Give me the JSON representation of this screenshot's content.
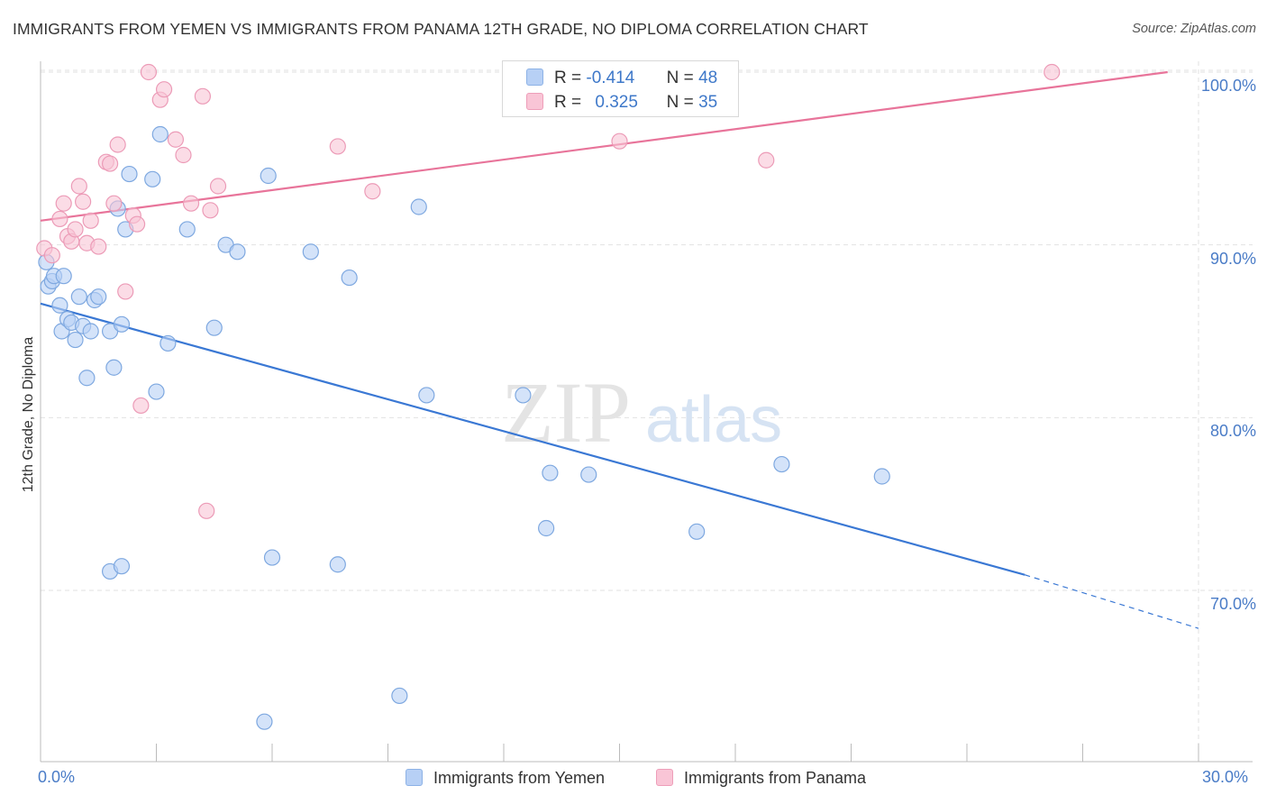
{
  "title": "IMMIGRANTS FROM YEMEN VS IMMIGRANTS FROM PANAMA 12TH GRADE, NO DIPLOMA CORRELATION CHART",
  "source": "Source: ZipAtlas.com",
  "watermark": {
    "zip": "ZIP",
    "atlas": "atlas"
  },
  "colors": {
    "blue": "#3a78d4",
    "pink": "#e8749a",
    "blue_fill": "#b7d0f5",
    "pink_fill": "#f9c5d6"
  },
  "legend": {
    "series": [
      {
        "r_label": "R =",
        "r_value": "-0.414",
        "n_label": "N =",
        "n_value": "48"
      },
      {
        "r_label": "R =",
        "r_value": "0.325",
        "n_label": "N =",
        "n_value": "35"
      }
    ]
  },
  "chart_data": {
    "type": "scatter",
    "title": "IMMIGRANTS FROM YEMEN VS IMMIGRANTS FROM PANAMA 12TH GRADE, NO DIPLOMA CORRELATION CHART",
    "xlabel": "",
    "ylabel": "12th Grade, No Diploma",
    "xlim": [
      0,
      30
    ],
    "ylim": [
      60,
      101
    ],
    "x_tick_labels": [
      "0.0%",
      "30.0%"
    ],
    "y_ticks": [
      70,
      80,
      90,
      100
    ],
    "y_tick_labels": [
      "70.0%",
      "80.0%",
      "90.0%",
      "100.0%"
    ],
    "grid": true,
    "series": [
      {
        "name": "Immigrants from Yemen",
        "color": "#3a78d4",
        "trend": {
          "x0": 0,
          "y0": 86.6,
          "x1": 25.5,
          "y1": 70.9,
          "dash_to_x": 30,
          "dash_to_y": 67.8
        },
        "points": [
          [
            0.15,
            89.0
          ],
          [
            0.2,
            87.6
          ],
          [
            0.3,
            87.9
          ],
          [
            0.35,
            88.2
          ],
          [
            0.5,
            86.5
          ],
          [
            0.55,
            85.0
          ],
          [
            0.6,
            88.2
          ],
          [
            0.7,
            85.7
          ],
          [
            0.8,
            85.5
          ],
          [
            0.9,
            84.5
          ],
          [
            1.0,
            87.0
          ],
          [
            1.1,
            85.3
          ],
          [
            1.2,
            82.3
          ],
          [
            1.3,
            85.0
          ],
          [
            1.4,
            86.8
          ],
          [
            1.5,
            87.0
          ],
          [
            1.8,
            85.0
          ],
          [
            1.9,
            82.9
          ],
          [
            2.0,
            92.1
          ],
          [
            2.1,
            85.4
          ],
          [
            2.2,
            90.9
          ],
          [
            2.3,
            94.1
          ],
          [
            2.9,
            93.8
          ],
          [
            3.0,
            81.5
          ],
          [
            3.1,
            96.4
          ],
          [
            3.3,
            84.3
          ],
          [
            3.8,
            90.9
          ],
          [
            4.5,
            85.2
          ],
          [
            4.8,
            90.0
          ],
          [
            5.1,
            89.6
          ],
          [
            5.9,
            94.0
          ],
          [
            7.0,
            89.6
          ],
          [
            8.0,
            88.1
          ],
          [
            9.8,
            92.2
          ],
          [
            12.5,
            81.3
          ],
          [
            13.2,
            76.8
          ],
          [
            14.2,
            76.7
          ],
          [
            1.8,
            71.1
          ],
          [
            2.1,
            71.4
          ],
          [
            6.0,
            71.9
          ],
          [
            7.7,
            71.5
          ],
          [
            13.1,
            73.6
          ],
          [
            17.0,
            73.4
          ],
          [
            19.2,
            77.3
          ],
          [
            21.8,
            76.6
          ],
          [
            5.8,
            62.4
          ],
          [
            9.3,
            63.9
          ],
          [
            10.0,
            81.3
          ]
        ]
      },
      {
        "name": "Immigrants from Panama",
        "color": "#e8749a",
        "trend": {
          "x0": 0,
          "y0": 91.4,
          "x1": 29.2,
          "y1": 100.0
        },
        "points": [
          [
            0.1,
            89.8
          ],
          [
            0.3,
            89.4
          ],
          [
            0.5,
            91.5
          ],
          [
            0.6,
            92.4
          ],
          [
            0.7,
            90.5
          ],
          [
            0.8,
            90.2
          ],
          [
            0.9,
            90.9
          ],
          [
            1.0,
            93.4
          ],
          [
            1.1,
            92.5
          ],
          [
            1.2,
            90.1
          ],
          [
            1.3,
            91.4
          ],
          [
            1.5,
            89.9
          ],
          [
            1.7,
            94.8
          ],
          [
            1.8,
            94.7
          ],
          [
            1.9,
            92.4
          ],
          [
            2.0,
            95.8
          ],
          [
            2.2,
            87.3
          ],
          [
            2.4,
            91.7
          ],
          [
            2.5,
            91.2
          ],
          [
            2.6,
            80.7
          ],
          [
            2.8,
            100.0
          ],
          [
            3.1,
            98.4
          ],
          [
            3.2,
            99.0
          ],
          [
            3.5,
            96.1
          ],
          [
            3.7,
            95.2
          ],
          [
            3.9,
            92.4
          ],
          [
            4.2,
            98.6
          ],
          [
            4.4,
            92.0
          ],
          [
            4.6,
            93.4
          ],
          [
            4.3,
            74.6
          ],
          [
            7.7,
            95.7
          ],
          [
            8.6,
            93.1
          ],
          [
            15.0,
            96.0
          ],
          [
            18.8,
            94.9
          ],
          [
            26.2,
            100.0
          ]
        ]
      }
    ]
  },
  "bottom_legend": [
    "Immigrants from Yemen",
    "Immigrants from Panama"
  ]
}
